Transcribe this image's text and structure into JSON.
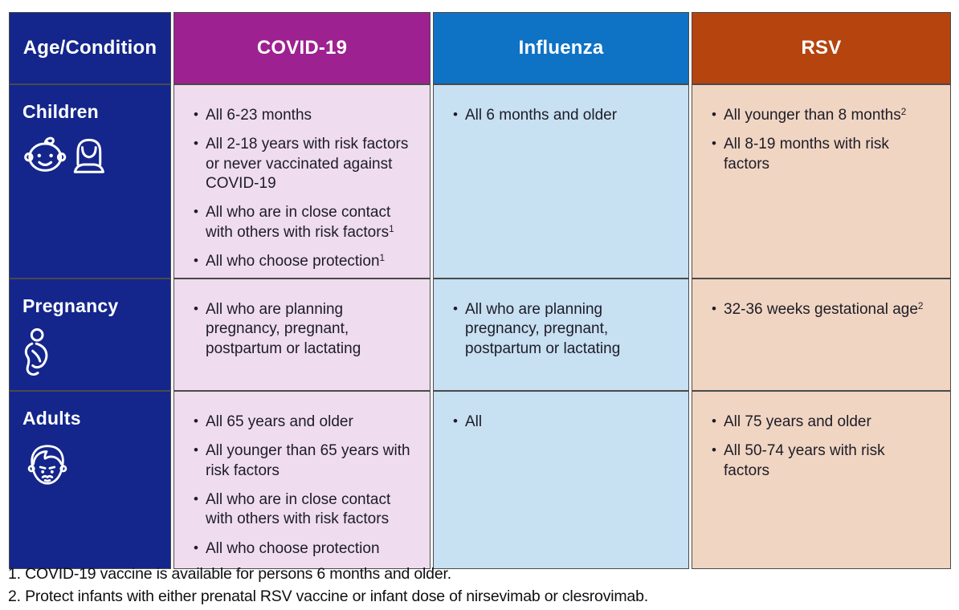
{
  "colors": {
    "age_column_bg": "#14268b",
    "covid_header_bg": "#9d2190",
    "influenza_header_bg": "#0e72c5",
    "rsv_header_bg": "#b5440f",
    "covid_cell_bg": "#efdcee",
    "influenza_cell_bg": "#c7e0f2",
    "rsv_cell_bg": "#f0d5c2",
    "header_text": "#ffffff",
    "body_text": "#1d1c27",
    "border": "#4a4a4a"
  },
  "table": {
    "column_headers": [
      "Age/Condition",
      "COVID-19",
      "Influenza",
      "RSV"
    ],
    "rows": [
      {
        "label": "Children",
        "icon": "children-icon",
        "covid_bullets": [
          "All 6-23 months",
          "All 2-18 years with risk factors or never vaccinated against COVID-19",
          "All who are in close contact with others with risk factors^1",
          "All who choose protection^1"
        ],
        "influenza_bullets": [
          "All 6 months and older"
        ],
        "rsv_bullets": [
          "All younger than 8 months^2",
          "All 8-19 months with risk factors"
        ]
      },
      {
        "label": "Pregnancy",
        "icon": "pregnancy-icon",
        "covid_bullets": [
          "All who are planning pregnancy, pregnant, postpartum or lactating"
        ],
        "influenza_bullets": [
          "All who are planning pregnancy, pregnant, postpartum or lactating"
        ],
        "rsv_bullets": [
          "32-36 weeks gestational age^2"
        ]
      },
      {
        "label": "Adults",
        "icon": "adults-icon",
        "covid_bullets": [
          "All 65 years and older",
          "All younger than 65 years with risk factors",
          "All who are in close contact with others with risk factors",
          "All who choose protection"
        ],
        "influenza_bullets": [
          "All"
        ],
        "rsv_bullets": [
          "All 75 years and older",
          "All 50-74 years with risk factors"
        ]
      }
    ]
  },
  "footnotes": [
    "1. COVID-19 vaccine is available for persons 6 months and older.",
    "2. Protect infants with either prenatal RSV vaccine or infant dose of nirsevimab or clesrovimab."
  ]
}
